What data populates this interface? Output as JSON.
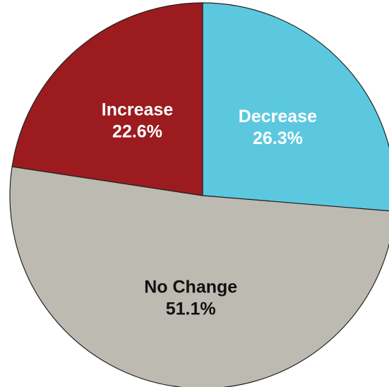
{
  "chart_data": {
    "type": "pie",
    "slices": [
      {
        "name": "Decrease",
        "label": "Decrease",
        "percent_label": "26.3%",
        "value": 26.3,
        "color": "#5bc8e0",
        "text_color": "#ffffff"
      },
      {
        "name": "No Change",
        "label": "No Change",
        "percent_label": "51.1%",
        "value": 51.1,
        "color": "#bdbab2",
        "text_color": "#111111"
      },
      {
        "name": "Increase",
        "label": "Increase",
        "percent_label": "22.6%",
        "value": 22.6,
        "color": "#9b1b1f",
        "text_color": "#ffffff"
      }
    ]
  }
}
